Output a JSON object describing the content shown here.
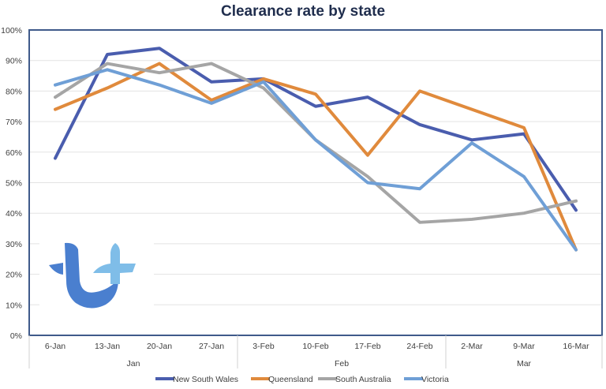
{
  "title": "Clearance rate by state",
  "chart_data": {
    "type": "line",
    "title": "Clearance rate by state",
    "x": [
      "6-Jan",
      "13-Jan",
      "20-Jan",
      "27-Jan",
      "3-Feb",
      "10-Feb",
      "17-Feb",
      "24-Feb",
      "2-Mar",
      "9-Mar",
      "16-Mar"
    ],
    "month_groups": [
      {
        "label": "Jan",
        "start": 0,
        "end": 3
      },
      {
        "label": "Feb",
        "start": 4,
        "end": 7
      },
      {
        "label": "Mar",
        "start": 8,
        "end": 10
      }
    ],
    "yticks": [
      "0%",
      "10%",
      "20%",
      "30%",
      "40%",
      "50%",
      "60%",
      "70%",
      "80%",
      "90%",
      "100%"
    ],
    "ylim": [
      0,
      100
    ],
    "grid": true,
    "legend_position": "bottom",
    "series": [
      {
        "name": "New South Wales",
        "color": "#4a5dae",
        "values": [
          58,
          92,
          94,
          83,
          84,
          75,
          78,
          69,
          64,
          66,
          41
        ]
      },
      {
        "name": "Queensland",
        "color": "#e08a3c",
        "values": [
          74,
          81,
          89,
          77,
          84,
          79,
          59,
          80,
          74,
          68,
          28
        ]
      },
      {
        "name": "South Australia",
        "color": "#a5a5a5",
        "values": [
          78,
          89,
          86,
          89,
          81,
          64,
          52,
          37,
          38,
          40,
          44
        ]
      },
      {
        "name": "Victoria",
        "color": "#6f9fd6",
        "values": [
          82,
          87,
          82,
          76,
          83,
          64,
          50,
          48,
          63,
          52,
          28
        ]
      }
    ]
  },
  "logo": {
    "icon": "tt-logo-icon",
    "colors": {
      "primary": "#4a7fcf",
      "secondary": "#7fbde8"
    }
  }
}
